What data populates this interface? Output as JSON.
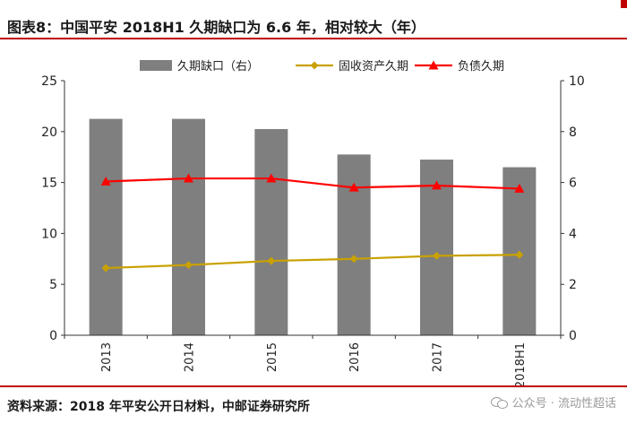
{
  "header": {
    "title": "图表8：中国平安 2018H1 久期缺口为 6.6 年，相对较大（年）"
  },
  "footer": {
    "source": "资料来源：2018 年平安公开日材料，中邮证券研究所",
    "watermark": "公众号 · 流动性超话"
  },
  "colors": {
    "accent": "#c00000",
    "bar": "#7f7f7f",
    "asset_line": "#c9a100",
    "liability_line": "#ff0000"
  },
  "chart_data": {
    "type": "bar",
    "categories": [
      "2013",
      "2014",
      "2015",
      "2016",
      "2017",
      "2018H1"
    ],
    "series": [
      {
        "name": "久期缺口（右）",
        "type": "bar",
        "axis": "right",
        "values": [
          8.5,
          8.5,
          8.1,
          7.1,
          6.9,
          6.6
        ]
      },
      {
        "name": "固收资产久期",
        "type": "line",
        "axis": "left",
        "marker": "diamond",
        "values": [
          6.6,
          6.9,
          7.3,
          7.5,
          7.8,
          7.9
        ]
      },
      {
        "name": "负债久期",
        "type": "line",
        "axis": "left",
        "marker": "triangle",
        "values": [
          15.1,
          15.4,
          15.4,
          14.5,
          14.7,
          14.4
        ]
      }
    ],
    "left_axis": {
      "min": 0,
      "max": 25,
      "ticks": [
        "0",
        "5",
        "10",
        "15",
        "20",
        "25"
      ]
    },
    "right_axis": {
      "min": 0,
      "max": 10,
      "ticks": [
        "0",
        "2",
        "4",
        "6",
        "8",
        "10"
      ]
    },
    "legend": {
      "position": "top"
    },
    "grid": false
  }
}
